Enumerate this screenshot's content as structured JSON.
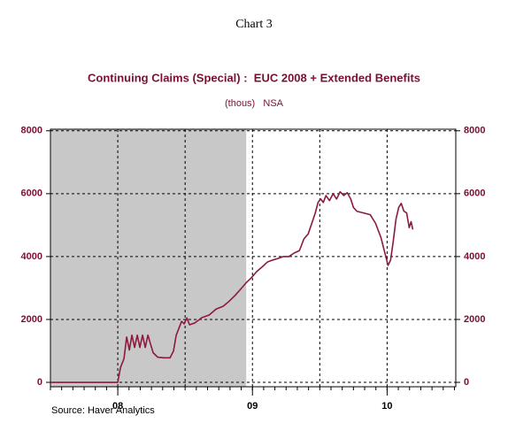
{
  "chart_data": {
    "type": "line",
    "heading": "Chart 3",
    "title": "Continuing Claims (Special) :  EUC 2008 + Extended Benefits",
    "subtitle": "(thous)   NSA",
    "source": "Source: Haver Analytics",
    "x": [
      2007.5,
      2008.0,
      2008.02,
      2008.046,
      2008.066,
      2008.086,
      2008.105,
      2008.125,
      2008.145,
      2008.164,
      2008.184,
      2008.204,
      2008.224,
      2008.243,
      2008.263,
      2008.296,
      2008.342,
      2008.388,
      2008.414,
      2008.434,
      2008.454,
      2008.474,
      2008.493,
      2008.513,
      2008.533,
      2008.572,
      2008.625,
      2008.678,
      2008.73,
      2008.783,
      2008.822,
      2008.868,
      2008.914,
      2008.954,
      2008.993,
      2009.033,
      2009.072,
      2009.112,
      2009.151,
      2009.191,
      2009.23,
      2009.27,
      2009.309,
      2009.349,
      2009.382,
      2009.414,
      2009.441,
      2009.467,
      2009.487,
      2009.507,
      2009.526,
      2009.546,
      2009.572,
      2009.599,
      2009.625,
      2009.651,
      2009.678,
      2009.704,
      2009.73,
      2009.75,
      2009.776,
      2009.822,
      2009.875,
      2009.914,
      2009.954,
      2009.98,
      2010.007,
      2010.026,
      2010.046,
      2010.066,
      2010.086,
      2010.105,
      2010.125,
      2010.145,
      2010.164,
      2010.178,
      2010.191
    ],
    "series": [
      {
        "color": "#8b1a3c",
        "values": [
          0,
          0,
          470,
          750,
          1440,
          1030,
          1500,
          1110,
          1500,
          1110,
          1500,
          1110,
          1500,
          1220,
          940,
          800,
          780,
          780,
          1000,
          1500,
          1720,
          1940,
          1860,
          2050,
          1830,
          1890,
          2060,
          2140,
          2330,
          2420,
          2560,
          2750,
          2970,
          3170,
          3330,
          3530,
          3670,
          3830,
          3890,
          3940,
          4000,
          4000,
          4110,
          4190,
          4560,
          4720,
          5060,
          5390,
          5720,
          5830,
          5720,
          5940,
          5780,
          6000,
          5830,
          6060,
          5940,
          6030,
          5830,
          5560,
          5440,
          5390,
          5330,
          5060,
          4610,
          4170,
          3720,
          3890,
          4500,
          5190,
          5560,
          5690,
          5440,
          5390,
          4920,
          5110,
          4860
        ]
      }
    ],
    "xlim": [
      2007.5,
      2010.51
    ],
    "xticks": [
      {
        "value": 2008,
        "label": "08"
      },
      {
        "value": 2009,
        "label": "09"
      },
      {
        "value": 2010,
        "label": "10"
      }
    ],
    "xgrid": [
      2008,
      2008.5,
      2009,
      2009.5,
      2010
    ],
    "ylim": [
      -140,
      8050
    ],
    "yticks": [
      0,
      2000,
      4000,
      6000,
      8000
    ],
    "shaded": [
      2007.5,
      2008.954
    ],
    "shade_color": "#c8c8c8",
    "grid": true
  }
}
